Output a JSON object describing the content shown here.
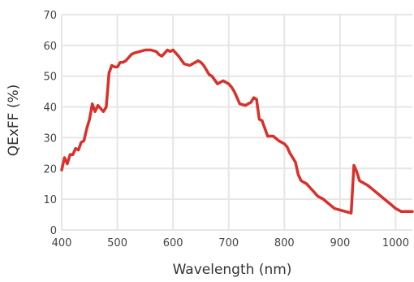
{
  "chart_data": {
    "type": "line",
    "title": "",
    "xlabel": "Wavelength (nm)",
    "ylabel": "QExFF (%)",
    "xlim": [
      400,
      1030
    ],
    "ylim": [
      0,
      70
    ],
    "x_ticks": [
      400,
      500,
      600,
      700,
      800,
      900,
      1000
    ],
    "y_ticks": [
      0,
      10,
      20,
      30,
      40,
      50,
      60,
      70
    ],
    "grid": true,
    "legend": "none",
    "series": [
      {
        "color": "#d9302b",
        "x": [
          400,
          405,
          410,
          415,
          420,
          425,
          430,
          435,
          440,
          445,
          450,
          455,
          460,
          465,
          470,
          475,
          480,
          485,
          490,
          495,
          500,
          502,
          505,
          510,
          515,
          520,
          525,
          530,
          540,
          550,
          560,
          570,
          575,
          580,
          585,
          590,
          595,
          600,
          605,
          610,
          620,
          630,
          640,
          645,
          650,
          655,
          660,
          665,
          670,
          680,
          690,
          700,
          705,
          710,
          715,
          720,
          730,
          740,
          745,
          750,
          755,
          760,
          770,
          780,
          790,
          800,
          805,
          810,
          815,
          820,
          825,
          830,
          835,
          840,
          845,
          850,
          855,
          860,
          870,
          880,
          890,
          900,
          910,
          920,
          925,
          930,
          935,
          940,
          950,
          960,
          970,
          980,
          990,
          1000,
          1010,
          1020,
          1025,
          1030
        ],
        "values": [
          19.5,
          23.5,
          21.5,
          24.5,
          24.5,
          26.5,
          26,
          28.5,
          29,
          33,
          36,
          41,
          38.5,
          40.5,
          39.5,
          38.5,
          40,
          51,
          53.5,
          53,
          53,
          53.5,
          54.5,
          54.5,
          55,
          56,
          57,
          57.5,
          58,
          58.5,
          58.5,
          58,
          57,
          56.5,
          57.5,
          58.5,
          58,
          58.5,
          57.5,
          56.5,
          54,
          53.5,
          54.5,
          55,
          54.5,
          53.5,
          52,
          50.5,
          50,
          47.5,
          48.5,
          47.5,
          46.5,
          45,
          43,
          41,
          40.5,
          41.5,
          43,
          42.5,
          36,
          35.5,
          30.5,
          30.5,
          29,
          28,
          27,
          25,
          23.5,
          22,
          18,
          16,
          15.5,
          15,
          14,
          13,
          12,
          11,
          10,
          8.5,
          7,
          6.5,
          6,
          5.5,
          21,
          19,
          16,
          15.5,
          14.5,
          13,
          11.5,
          10,
          8.5,
          7,
          6,
          6,
          6,
          6
        ]
      }
    ]
  }
}
